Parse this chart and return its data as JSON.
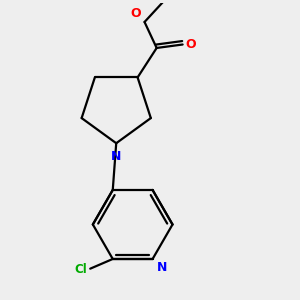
{
  "bg_color": "#eeeeee",
  "bond_color": "#000000",
  "N_color": "#0000ff",
  "O_color": "#ff0000",
  "Cl_color": "#00aa00",
  "line_width": 1.6,
  "figsize": [
    3.0,
    3.0
  ],
  "dpi": 100,
  "xlim": [
    2.5,
    8.5
  ],
  "ylim": [
    1.0,
    9.5
  ]
}
